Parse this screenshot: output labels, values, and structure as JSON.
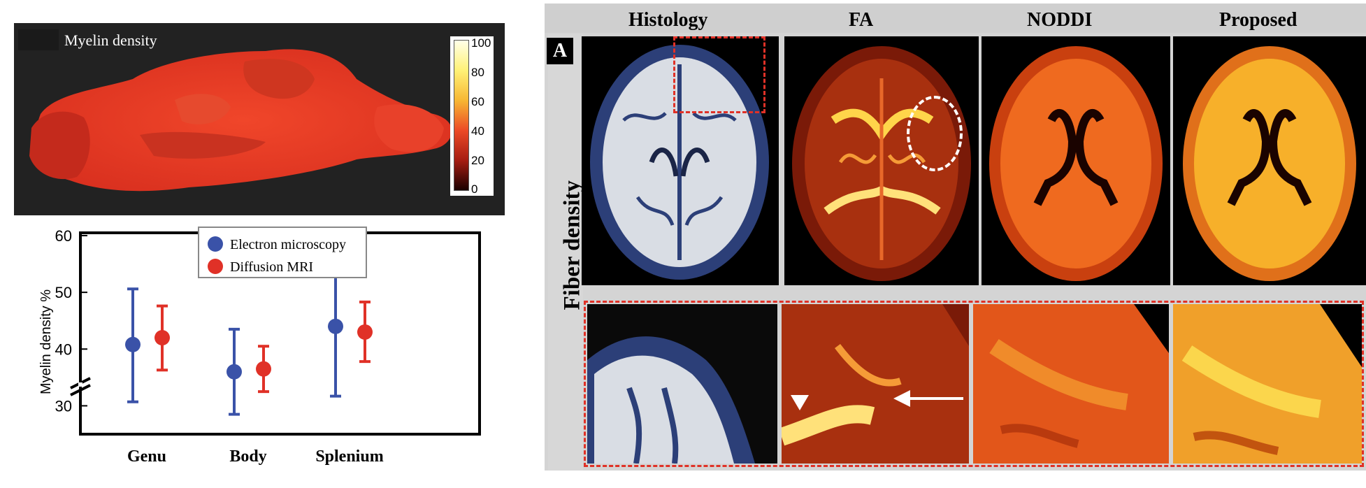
{
  "sagittal": {
    "label": "Myelin density",
    "colorbar_ticks": [
      "100",
      "80",
      "60",
      "40",
      "20",
      "0"
    ]
  },
  "chart_data": {
    "type": "scatter",
    "categories": [
      "Genu",
      "Body",
      "Splenium"
    ],
    "ylabel": "Myelin density %",
    "xlabel": "",
    "ylim": [
      25,
      60
    ],
    "yticks": [
      30,
      40,
      50,
      60
    ],
    "axis_break": true,
    "legend_position": "top-right",
    "series": [
      {
        "name": "Electron microscopy",
        "color": "#3a52a8",
        "values": [
          40.8,
          36.0,
          44.0
        ],
        "lower": [
          30.7,
          28.5,
          31.7
        ],
        "upper": [
          50.6,
          43.5,
          56.4
        ]
      },
      {
        "name": "Diffusion MRI",
        "color": "#e03127",
        "values": [
          42.0,
          36.5,
          43.0
        ],
        "lower": [
          36.3,
          32.5,
          37.8
        ],
        "upper": [
          47.6,
          40.5,
          48.3
        ]
      }
    ]
  },
  "figure": {
    "columns": [
      "Histology",
      "FA",
      "NODDI",
      "Proposed"
    ],
    "panel_label": "A",
    "row_label": "Fiber density"
  },
  "colors": {
    "error_bar_blue": "#3a52a8",
    "error_bar_red": "#e03127",
    "zoom_box": "#e03127"
  }
}
